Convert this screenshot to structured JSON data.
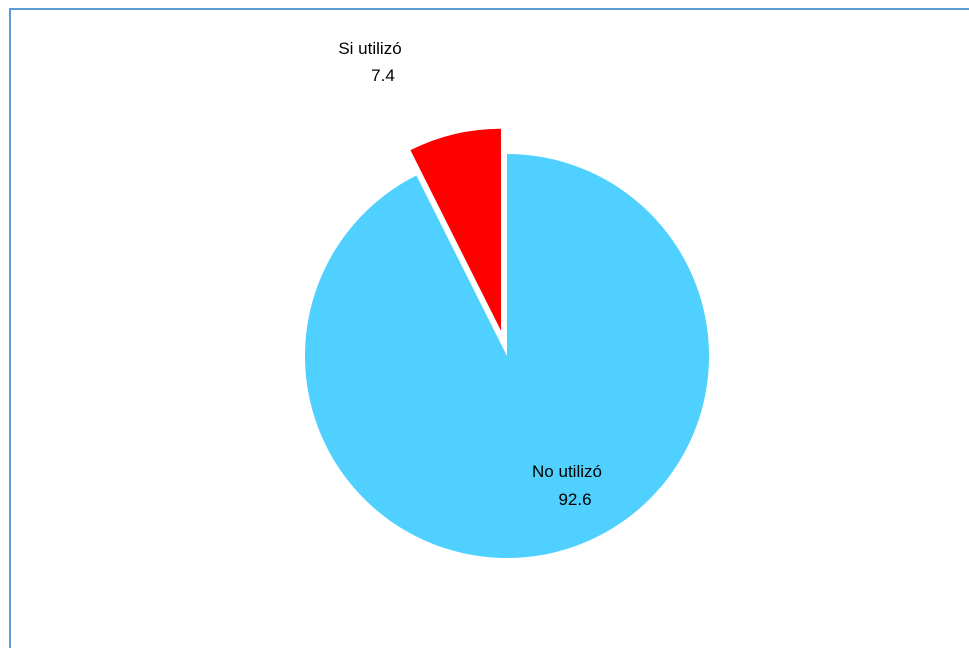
{
  "chart_data": {
    "type": "pie",
    "title": "",
    "start_angle_deg": 0,
    "direction": "clockwise",
    "slices": [
      {
        "label": "No utilizó",
        "value": 92.6,
        "value_label": "92.6",
        "color": "#4fd0ff",
        "exploded": false
      },
      {
        "label": "Si utilizó",
        "value": 7.4,
        "value_label": "7.4",
        "color": "#ff0000",
        "exploded": true
      }
    ]
  }
}
